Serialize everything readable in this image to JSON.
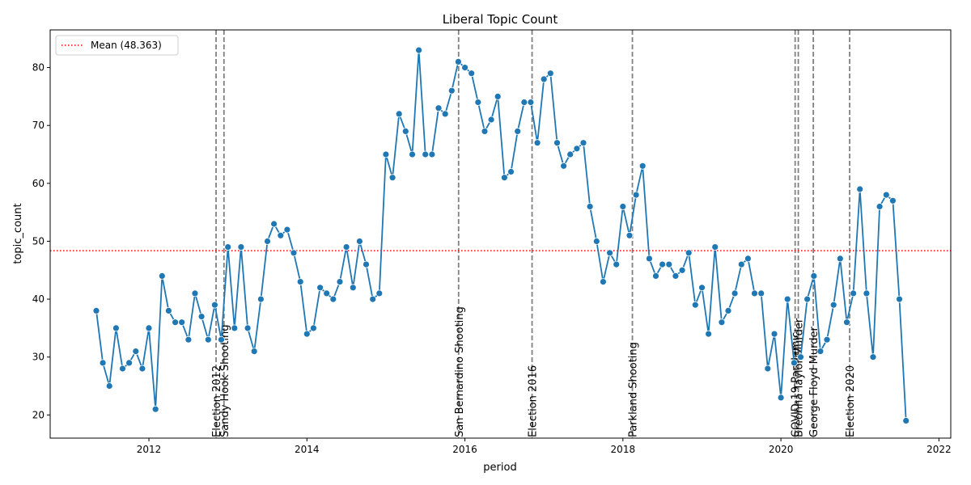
{
  "chart_data": {
    "type": "line",
    "title": "Liberal Topic Count",
    "xlabel": "period",
    "ylabel": "topic_count",
    "xlim": [
      2010.75,
      2022.15
    ],
    "ylim": [
      16,
      86.5
    ],
    "x_ticks": [
      2012,
      2014,
      2016,
      2018,
      2020,
      2022
    ],
    "y_ticks": [
      20,
      30,
      40,
      50,
      60,
      70,
      80
    ],
    "grid": false,
    "legend": {
      "position": "top-left",
      "entries": [
        "Mean (48.363)"
      ]
    },
    "mean": {
      "label": "Mean (48.363)",
      "value": 48.363,
      "color": "#ff0000",
      "style": "dotted"
    },
    "series": [
      {
        "color": "#1f77b4",
        "start_year": 2011,
        "start_month": 5,
        "values": [
          38,
          29,
          25,
          35,
          28,
          29,
          31,
          28,
          35,
          21,
          44,
          38,
          36,
          36,
          33,
          41,
          37,
          33,
          39,
          33,
          49,
          35,
          49,
          35,
          31,
          40,
          50,
          53,
          51,
          52,
          48,
          43,
          34,
          35,
          42,
          41,
          40,
          43,
          49,
          42,
          50,
          46,
          40,
          41,
          65,
          61,
          72,
          69,
          65,
          83,
          65,
          65,
          73,
          72,
          76,
          81,
          80,
          79,
          74,
          69,
          71,
          75,
          61,
          62,
          69,
          74,
          74,
          67,
          78,
          79,
          67,
          63,
          65,
          66,
          67,
          56,
          50,
          43,
          48,
          46,
          56,
          51,
          58,
          63,
          47,
          44,
          46,
          46,
          44,
          45,
          48,
          39,
          42,
          34,
          49,
          36,
          38,
          41,
          46,
          47,
          41,
          41,
          28,
          34,
          23,
          40,
          29,
          30,
          40,
          44,
          31,
          33,
          39,
          47,
          36,
          41,
          59,
          41,
          30,
          56,
          58,
          57,
          40,
          19
        ]
      }
    ],
    "events": [
      {
        "label": "Election 2012",
        "x": 2012.85
      },
      {
        "label": "Sandy Hook Shooting",
        "x": 2012.95
      },
      {
        "label": "San Bernardino Shooting",
        "x": 2015.92
      },
      {
        "label": "Election 2016",
        "x": 2016.85
      },
      {
        "label": "Parkland Shooting",
        "x": 2018.12
      },
      {
        "label": "COVID-19 Pandemic",
        "x": 2020.18
      },
      {
        "label": "Breonna Taylor Murder",
        "x": 2020.22
      },
      {
        "label": "George Floyd Murder",
        "x": 2020.41
      },
      {
        "label": "Election 2020",
        "x": 2020.87
      }
    ]
  }
}
